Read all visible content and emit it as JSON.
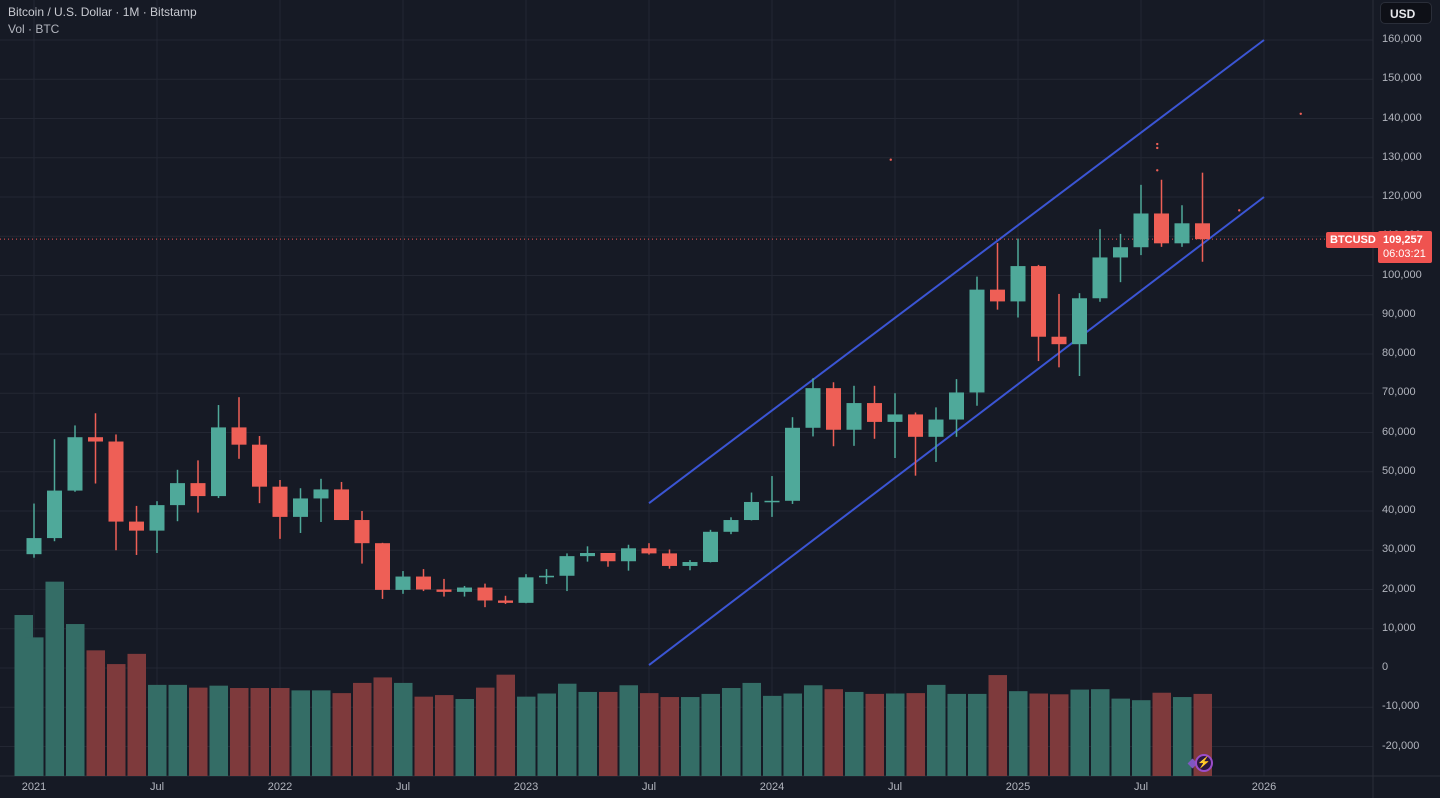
{
  "header": {
    "title": "Bitcoin / U.S. Dollar · 1M · Bitstamp",
    "sub_indicator": "Vol · BTC",
    "currency": "USD"
  },
  "price_tag": {
    "symbol": "BTCUSD",
    "last_price": "109,257",
    "countdown": "06:03:21"
  },
  "colors": {
    "background": "#161a25",
    "grid": "#232733",
    "up": "#4fa99a",
    "down": "#ee5f56",
    "vol_up": "#346d66",
    "vol_down": "#7e3a3c",
    "channel": "#3b55d4",
    "last_price_line": "#ef5350"
  },
  "price_axis": {
    "labels": [
      "160,000",
      "150,000",
      "140,000",
      "130,000",
      "120,000",
      "110,000",
      "100,000",
      "90,000",
      "80,000",
      "70,000",
      "60,000",
      "50,000",
      "40,000",
      "30,000",
      "20,000",
      "10,000",
      "0",
      "-10,000",
      "-20,000"
    ],
    "values": [
      160000,
      150000,
      140000,
      130000,
      120000,
      110000,
      100000,
      90000,
      80000,
      70000,
      60000,
      50000,
      40000,
      30000,
      20000,
      10000,
      0,
      -10000,
      -20000
    ]
  },
  "time_axis": {
    "labels": [
      "2021",
      "Jul",
      "2022",
      "Jul",
      "2023",
      "Jul",
      "2024",
      "Jul",
      "2025",
      "Jul",
      "2026"
    ],
    "month_index": [
      0,
      6,
      12,
      18,
      24,
      30,
      36,
      42,
      48,
      54,
      60
    ]
  },
  "chart_data": {
    "type": "candlestick",
    "title": "Bitcoin / U.S. Dollar · 1M · Bitstamp",
    "xlabel": "",
    "ylabel": "USD",
    "ylim": [
      -28000,
      165000
    ],
    "grid": true,
    "start_month": "2021-01",
    "months": [
      "2021-01",
      "2021-02",
      "2021-03",
      "2021-04",
      "2021-05",
      "2021-06",
      "2021-07",
      "2021-08",
      "2021-09",
      "2021-10",
      "2021-11",
      "2021-12",
      "2022-01",
      "2022-02",
      "2022-03",
      "2022-04",
      "2022-05",
      "2022-06",
      "2022-07",
      "2022-08",
      "2022-09",
      "2022-10",
      "2022-11",
      "2022-12",
      "2023-01",
      "2023-02",
      "2023-03",
      "2023-04",
      "2023-05",
      "2023-06",
      "2023-07",
      "2023-08",
      "2023-09",
      "2023-10",
      "2023-11",
      "2023-12",
      "2024-01",
      "2024-02",
      "2024-03",
      "2024-04",
      "2024-05",
      "2024-06",
      "2024-07",
      "2024-08",
      "2024-09",
      "2024-10",
      "2024-11",
      "2024-12",
      "2025-01",
      "2025-02",
      "2025-03",
      "2025-04",
      "2025-05",
      "2025-06",
      "2025-07",
      "2025-08",
      "2025-09",
      "2025-10"
    ],
    "open": [
      29000,
      33100,
      45200,
      58800,
      57700,
      37300,
      35000,
      41500,
      47100,
      43800,
      61300,
      56900,
      46200,
      38500,
      43200,
      45500,
      37700,
      31800,
      19900,
      23300,
      20000,
      19400,
      20500,
      17200,
      16600,
      23100,
      23500,
      28500,
      29300,
      27200,
      30500,
      29200,
      26000,
      27000,
      34700,
      37700,
      42300,
      42600,
      61200,
      71300,
      60700,
      67500,
      62700,
      64600,
      58900,
      63300,
      70200,
      96400,
      93400,
      102400,
      84400,
      82500,
      94200,
      104600,
      107200,
      115800,
      108200,
      113300
    ],
    "high": [
      41900,
      58300,
      61800,
      64900,
      59500,
      41300,
      42500,
      50500,
      52900,
      67000,
      69000,
      59100,
      47900,
      45800,
      48200,
      47400,
      40000,
      31900,
      24700,
      25200,
      22700,
      20900,
      21500,
      18400,
      23900,
      25200,
      29200,
      31000,
      28400,
      31400,
      31800,
      30200,
      27500,
      35200,
      38400,
      44700,
      48900,
      63900,
      73800,
      72800,
      71900,
      71900,
      70000,
      65100,
      66400,
      73600,
      99700,
      108300,
      109400,
      102700,
      95300,
      95500,
      111800,
      110600,
      123100,
      124400,
      117900,
      126200
    ],
    "low": [
      28100,
      32300,
      44900,
      47000,
      30000,
      28800,
      29300,
      37400,
      39600,
      43300,
      53300,
      42000,
      32900,
      34400,
      37200,
      37700,
      26600,
      17600,
      18900,
      19600,
      18200,
      18200,
      15500,
      16300,
      16500,
      21400,
      19600,
      27100,
      25800,
      24800,
      28900,
      25300,
      24900,
      26900,
      34100,
      37600,
      38500,
      41800,
      59000,
      56500,
      56600,
      58400,
      53500,
      49000,
      52500,
      58900,
      66800,
      91300,
      89300,
      78200,
      76600,
      74400,
      93300,
      98300,
      105200,
      107300,
      107300,
      103500
    ],
    "close": [
      33100,
      45200,
      58800,
      57700,
      37300,
      35000,
      41500,
      47100,
      43800,
      61300,
      56900,
      46200,
      38500,
      43200,
      45500,
      37700,
      31800,
      19900,
      23300,
      20000,
      19400,
      20500,
      17200,
      16600,
      23100,
      23500,
      28500,
      29300,
      27200,
      30500,
      29200,
      26000,
      27000,
      34700,
      37700,
      42300,
      42600,
      61200,
      71300,
      60700,
      67500,
      62700,
      64600,
      58900,
      63300,
      70200,
      96400,
      93400,
      102400,
      84400,
      82500,
      94200,
      104600,
      107200,
      115800,
      108200,
      113300,
      109257
    ],
    "volume_prefix": [
      13500
    ],
    "volume": [
      7800,
      22000,
      11200,
      4500,
      1000,
      3600,
      -4300,
      -4300,
      -5000,
      -4500,
      -5100,
      -5100,
      -5100,
      -5700,
      -5700,
      -6400,
      -3800,
      -2400,
      -3800,
      -7300,
      -6900,
      -7900,
      -5000,
      -1700,
      -7300,
      -6500,
      -4000,
      -6100,
      -6100,
      -4400,
      -6400,
      -7400,
      -7400,
      -6600,
      -5100,
      -3800,
      -7100,
      -6500,
      -4400,
      -5400,
      -6100,
      -6600,
      -6500,
      -6400,
      -4300,
      -6600,
      -6600,
      -1800,
      -5900,
      -6500,
      -6700,
      -5500,
      -5400,
      -7800,
      -8200,
      -6300,
      -7400,
      -6600
    ],
    "volume_note": "volume bars drawn in lower pane; tops expressed in price-axis units (bars extend to pane bottom)",
    "channel": {
      "upper": {
        "from": {
          "month": 30,
          "price": 42000
        },
        "to": {
          "month": 60,
          "price": 160000
        }
      },
      "lower": {
        "from": {
          "month": 30,
          "price": 750
        },
        "to": {
          "month": 60,
          "price": 120000
        }
      }
    },
    "last_price": 109257
  }
}
